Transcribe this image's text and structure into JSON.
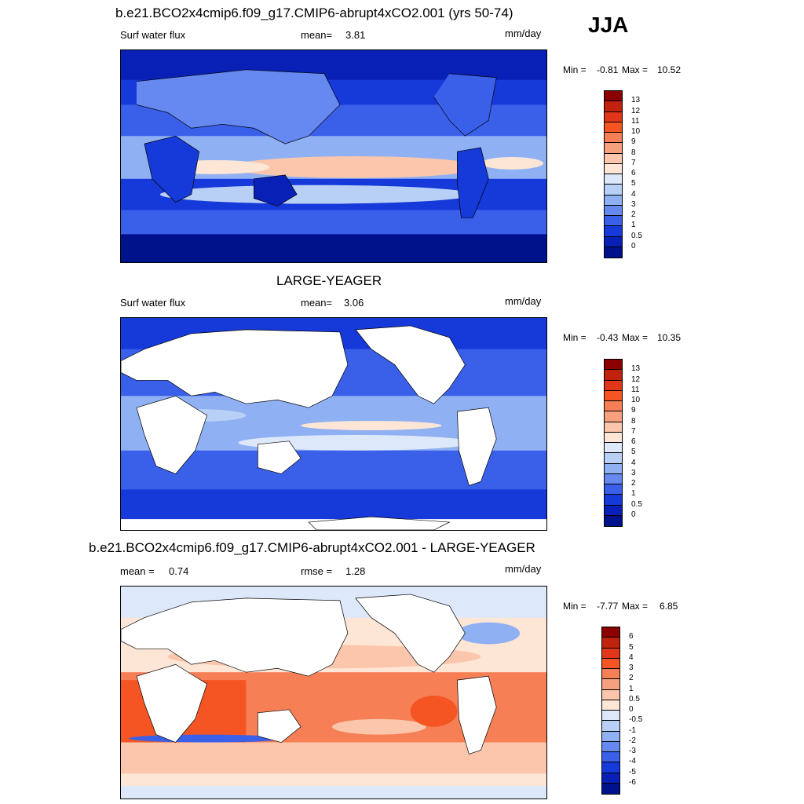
{
  "season": "JJA",
  "panels": [
    {
      "title": "b.e21.BCO2x4cmip6.f09_g17.CMIP6-abrupt4xCO2.001 (yrs 50-74)",
      "variable": "Surf water flux",
      "stat1_label": "mean=",
      "stat1_value": "3.81",
      "units": "mm/day",
      "min_label": "Min =",
      "min_value": "-0.81",
      "max_label": "Max =",
      "max_value": "10.52",
      "colorbar_labels": [
        "13",
        "12",
        "11",
        "10",
        "9",
        "8",
        "7",
        "6",
        "5",
        "4",
        "3",
        "2",
        "1",
        "0.5",
        "0"
      ],
      "colorbar_colors": [
        "#8b0000",
        "#c0220d",
        "#e1361a",
        "#f45522",
        "#f67f55",
        "#f7a07e",
        "#fbc6ab",
        "#fde6d6",
        "#dde9fa",
        "#b9d0f6",
        "#8fb0f3",
        "#6688f1",
        "#3a60ea",
        "#1639d9",
        "#0820b5",
        "#00118c"
      ],
      "land_masked": false
    },
    {
      "title": "LARGE-YEAGER",
      "variable": "Surf water flux",
      "stat1_label": "mean=",
      "stat1_value": "3.06",
      "units": "mm/day",
      "min_label": "Min =",
      "min_value": "-0.43",
      "max_label": "Max =",
      "max_value": "10.35",
      "colorbar_labels": [
        "13",
        "12",
        "11",
        "10",
        "9",
        "8",
        "7",
        "6",
        "5",
        "4",
        "3",
        "2",
        "1",
        "0.5",
        "0"
      ],
      "colorbar_colors": [
        "#8b0000",
        "#c0220d",
        "#e1361a",
        "#f45522",
        "#f67f55",
        "#f7a07e",
        "#fbc6ab",
        "#fde6d6",
        "#dde9fa",
        "#b9d0f6",
        "#8fb0f3",
        "#6688f1",
        "#3a60ea",
        "#1639d9",
        "#0820b5",
        "#00118c"
      ],
      "land_masked": true
    },
    {
      "title": "b.e21.BCO2x4cmip6.f09_g17.CMIP6-abrupt4xCO2.001 - LARGE-YEAGER",
      "stat1_label": "mean =",
      "stat1_value": "0.74",
      "stat2_label": "rmse =",
      "stat2_value": "1.28",
      "units": "mm/day",
      "min_label": "Min =",
      "min_value": "-7.77",
      "max_label": "Max =",
      "max_value": "6.85",
      "colorbar_labels": [
        "6",
        "5",
        "4",
        "3",
        "2",
        "1",
        "0.5",
        "0",
        "-0.5",
        "-1",
        "-2",
        "-3",
        "-4",
        "-5",
        "-6"
      ],
      "colorbar_colors": [
        "#8b0000",
        "#c0220d",
        "#e1361a",
        "#f45522",
        "#f67f55",
        "#f7a07e",
        "#fbc6ab",
        "#fde6d6",
        "#dde9fa",
        "#b9d0f6",
        "#8fb0f3",
        "#6688f1",
        "#3a60ea",
        "#1639d9",
        "#0820b5",
        "#00118c"
      ],
      "land_masked": true
    }
  ]
}
